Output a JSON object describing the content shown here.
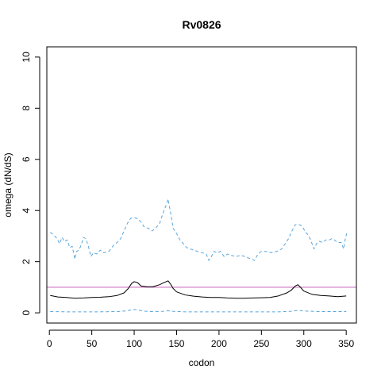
{
  "chart_data": {
    "type": "line",
    "title": "Rv0826",
    "xlabel": "codon",
    "ylabel": "omega (dN/dS)",
    "xlim": [
      -3,
      362
    ],
    "ylim": [
      -0.4,
      10.4
    ],
    "x_ticks": [
      0,
      50,
      100,
      150,
      200,
      250,
      300,
      350
    ],
    "y_ticks": [
      0,
      2,
      4,
      6,
      8,
      10
    ],
    "grid": false,
    "reference_line": {
      "y": 1,
      "color": "#c65fb6"
    },
    "series": [
      {
        "style": "solid",
        "color": "#000000",
        "points": [
          [
            1,
            0.68
          ],
          [
            10,
            0.62
          ],
          [
            20,
            0.6
          ],
          [
            30,
            0.57
          ],
          [
            40,
            0.58
          ],
          [
            50,
            0.6
          ],
          [
            60,
            0.61
          ],
          [
            70,
            0.63
          ],
          [
            80,
            0.68
          ],
          [
            88,
            0.78
          ],
          [
            93,
            0.95
          ],
          [
            97,
            1.15
          ],
          [
            100,
            1.22
          ],
          [
            104,
            1.18
          ],
          [
            108,
            1.05
          ],
          [
            115,
            1.02
          ],
          [
            122,
            1.02
          ],
          [
            130,
            1.1
          ],
          [
            135,
            1.18
          ],
          [
            140,
            1.25
          ],
          [
            143,
            1.12
          ],
          [
            146,
            0.95
          ],
          [
            150,
            0.82
          ],
          [
            160,
            0.7
          ],
          [
            170,
            0.65
          ],
          [
            180,
            0.62
          ],
          [
            190,
            0.6
          ],
          [
            200,
            0.6
          ],
          [
            210,
            0.58
          ],
          [
            220,
            0.57
          ],
          [
            230,
            0.57
          ],
          [
            240,
            0.58
          ],
          [
            250,
            0.59
          ],
          [
            260,
            0.6
          ],
          [
            270,
            0.66
          ],
          [
            280,
            0.78
          ],
          [
            285,
            0.88
          ],
          [
            290,
            1.05
          ],
          [
            293,
            1.1
          ],
          [
            296,
            1.0
          ],
          [
            300,
            0.85
          ],
          [
            310,
            0.72
          ],
          [
            320,
            0.68
          ],
          [
            330,
            0.66
          ],
          [
            340,
            0.63
          ],
          [
            350,
            0.66
          ]
        ]
      },
      {
        "style": "dashed",
        "color": "#5aa6dc",
        "points": [
          [
            1,
            3.15
          ],
          [
            5,
            3.05
          ],
          [
            9,
            2.9
          ],
          [
            12,
            2.7
          ],
          [
            15,
            2.95
          ],
          [
            18,
            2.78
          ],
          [
            21,
            2.85
          ],
          [
            24,
            2.55
          ],
          [
            27,
            2.6
          ],
          [
            30,
            2.1
          ],
          [
            32,
            2.4
          ],
          [
            35,
            2.45
          ],
          [
            38,
            2.7
          ],
          [
            40,
            2.95
          ],
          [
            43,
            2.9
          ],
          [
            46,
            2.6
          ],
          [
            49,
            2.2
          ],
          [
            52,
            2.35
          ],
          [
            56,
            2.3
          ],
          [
            60,
            2.45
          ],
          [
            64,
            2.35
          ],
          [
            70,
            2.4
          ],
          [
            76,
            2.65
          ],
          [
            80,
            2.75
          ],
          [
            84,
            2.9
          ],
          [
            88,
            3.2
          ],
          [
            92,
            3.5
          ],
          [
            96,
            3.7
          ],
          [
            100,
            3.72
          ],
          [
            104,
            3.68
          ],
          [
            108,
            3.55
          ],
          [
            112,
            3.35
          ],
          [
            117,
            3.3
          ],
          [
            121,
            3.2
          ],
          [
            125,
            3.3
          ],
          [
            130,
            3.5
          ],
          [
            134,
            3.9
          ],
          [
            137,
            4.15
          ],
          [
            140,
            4.45
          ],
          [
            143,
            3.9
          ],
          [
            146,
            3.3
          ],
          [
            150,
            3.1
          ],
          [
            154,
            2.85
          ],
          [
            158,
            2.7
          ],
          [
            162,
            2.55
          ],
          [
            166,
            2.5
          ],
          [
            170,
            2.45
          ],
          [
            175,
            2.4
          ],
          [
            180,
            2.35
          ],
          [
            185,
            2.3
          ],
          [
            188,
            2.05
          ],
          [
            191,
            2.2
          ],
          [
            194,
            2.4
          ],
          [
            198,
            2.35
          ],
          [
            202,
            2.4
          ],
          [
            206,
            2.2
          ],
          [
            210,
            2.3
          ],
          [
            214,
            2.25
          ],
          [
            220,
            2.2
          ],
          [
            226,
            2.25
          ],
          [
            232,
            2.18
          ],
          [
            238,
            2.1
          ],
          [
            242,
            2.05
          ],
          [
            246,
            2.3
          ],
          [
            250,
            2.4
          ],
          [
            256,
            2.4
          ],
          [
            262,
            2.35
          ],
          [
            268,
            2.4
          ],
          [
            274,
            2.5
          ],
          [
            278,
            2.7
          ],
          [
            282,
            2.9
          ],
          [
            286,
            3.2
          ],
          [
            290,
            3.45
          ],
          [
            294,
            3.45
          ],
          [
            298,
            3.4
          ],
          [
            302,
            3.15
          ],
          [
            305,
            3.05
          ],
          [
            308,
            2.85
          ],
          [
            312,
            2.5
          ],
          [
            315,
            2.7
          ],
          [
            318,
            2.8
          ],
          [
            322,
            2.75
          ],
          [
            326,
            2.85
          ],
          [
            330,
            2.85
          ],
          [
            333,
            2.9
          ],
          [
            336,
            2.85
          ],
          [
            340,
            2.75
          ],
          [
            344,
            2.75
          ],
          [
            347,
            2.5
          ],
          [
            349,
            2.9
          ],
          [
            351,
            3.15
          ]
        ]
      },
      {
        "style": "dashed",
        "color": "#5aa6dc",
        "points": [
          [
            1,
            0.05
          ],
          [
            20,
            0.04
          ],
          [
            40,
            0.04
          ],
          [
            60,
            0.04
          ],
          [
            80,
            0.05
          ],
          [
            92,
            0.08
          ],
          [
            98,
            0.13
          ],
          [
            104,
            0.12
          ],
          [
            110,
            0.07
          ],
          [
            120,
            0.05
          ],
          [
            135,
            0.06
          ],
          [
            140,
            0.08
          ],
          [
            145,
            0.06
          ],
          [
            160,
            0.04
          ],
          [
            200,
            0.04
          ],
          [
            240,
            0.04
          ],
          [
            270,
            0.04
          ],
          [
            285,
            0.06
          ],
          [
            293,
            0.1
          ],
          [
            300,
            0.07
          ],
          [
            320,
            0.05
          ],
          [
            350,
            0.05
          ]
        ]
      }
    ]
  }
}
